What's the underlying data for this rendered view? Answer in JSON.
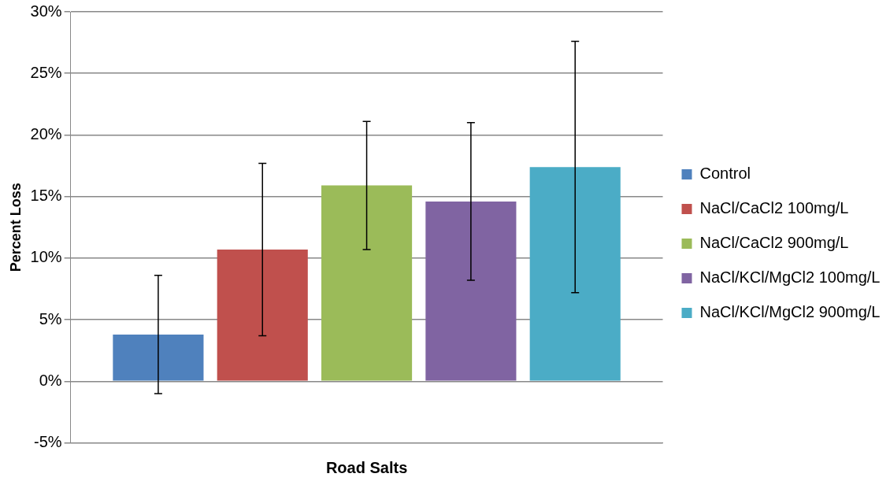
{
  "chart_data": {
    "type": "bar",
    "xlabel": "Road Salts",
    "ylabel": "Percent Loss",
    "categories": [
      null
    ],
    "series": [
      {
        "name": "Control",
        "color": "#4f81bd",
        "values": [
          3.8
        ],
        "errors": [
          4.8
        ]
      },
      {
        "name": "NaCl/CaCl2 100mg/L",
        "color": "#c0504d",
        "values": [
          10.7
        ],
        "errors": [
          7.0
        ]
      },
      {
        "name": "NaCl/CaCl2 900mg/L",
        "color": "#9bbb59",
        "values": [
          15.9
        ],
        "errors": [
          5.2
        ]
      },
      {
        "name": "NaCl/KCl/MgCl2 100mg/L",
        "color": "#8064a2",
        "values": [
          14.6
        ],
        "errors": [
          6.4
        ]
      },
      {
        "name": "NaCl/KCl/MgCl2 900mg/L",
        "color": "#4bacc6",
        "values": [
          17.4
        ],
        "errors": [
          10.2
        ]
      }
    ],
    "ylim": [
      -5,
      30
    ],
    "yticks": [
      {
        "value": -5,
        "label": "-5%"
      },
      {
        "value": 0,
        "label": "0%"
      },
      {
        "value": 5,
        "label": "5%"
      },
      {
        "value": 10,
        "label": "10%"
      },
      {
        "value": 15,
        "label": "15%"
      },
      {
        "value": 20,
        "label": "20%"
      },
      {
        "value": 25,
        "label": "25%"
      },
      {
        "value": 30,
        "label": "30%"
      }
    ],
    "grid": "y",
    "legend": "right"
  }
}
